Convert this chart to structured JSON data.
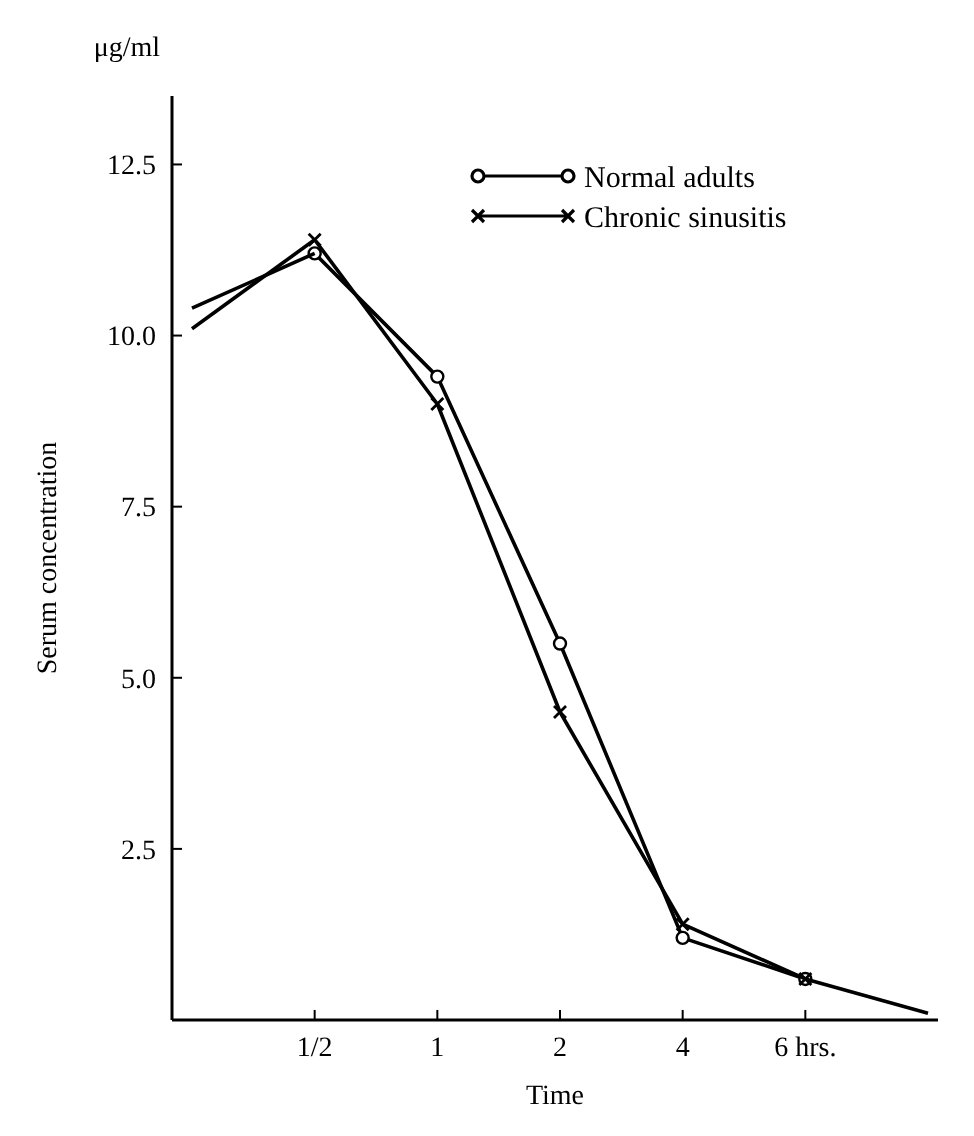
{
  "chart_data": {
    "type": "line",
    "xlabel": "Time",
    "ylabel": "Serum concentration",
    "annotations": [
      "μg/ml"
    ],
    "categories": [
      null,
      "1/2",
      "1",
      "2",
      "4",
      "6 hrs.",
      null
    ],
    "ylim": [
      0,
      13.5
    ],
    "yticks": [
      2.5,
      {
        "value": 5,
        "label": "5.0"
      },
      7.5,
      {
        "value": 10,
        "label": "10.0"
      },
      12.5
    ],
    "grid": false,
    "legend": "top right",
    "series": [
      {
        "name": "Normal adults",
        "color": "#000000",
        "marker": "circle",
        "values": [
          null,
          11.2,
          9.4,
          5.5,
          1.2,
          0.6,
          null
        ]
      },
      {
        "name": "Chronic sinusitis",
        "color": "#000000",
        "marker": "cross",
        "values": [
          null,
          11.4,
          9.0,
          4.5,
          1.4,
          0.6,
          null
        ]
      },
      {
        "color": "#000000",
        "values": [
          10.4,
          11.2,
          null,
          null,
          null,
          null,
          null
        ]
      },
      {
        "color": "#000000",
        "values": [
          10.1,
          11.4,
          null,
          null,
          null,
          null,
          null
        ]
      },
      {
        "color": "#000000",
        "values": [
          null,
          null,
          null,
          null,
          null,
          0.6,
          0.1
        ]
      }
    ]
  }
}
